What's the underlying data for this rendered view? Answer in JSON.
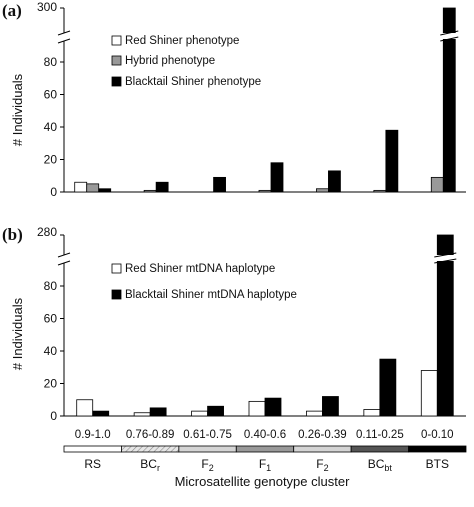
{
  "figure": {
    "xlabel": "Microsatellite genotype cluster",
    "ranges": [
      "0.9-1.0",
      "0.76-0.89",
      "0.61-0.75",
      "0.40-0.6",
      "0.26-0.39",
      "0.11-0.25",
      "0-0.10"
    ],
    "clusters": [
      {
        "base": "RS",
        "sub": ""
      },
      {
        "base": "BC",
        "sub": "r"
      },
      {
        "base": "F",
        "sub": "2"
      },
      {
        "base": "F",
        "sub": "1"
      },
      {
        "base": "F",
        "sub": "2"
      },
      {
        "base": "BC",
        "sub": "bt"
      },
      {
        "base": "BTS",
        "sub": ""
      }
    ]
  },
  "chart_data": [
    {
      "type": "bar",
      "panel_label": "(a)",
      "ylabel": "# Individuals",
      "yticks": [
        "0",
        "20",
        "40",
        "60",
        "80"
      ],
      "ytick_top": "300",
      "ylim": [
        0,
        100
      ],
      "axis_break": true,
      "categories": [
        "RS",
        "BCr",
        "F2",
        "F1",
        "F2",
        "BCbt",
        "BTS"
      ],
      "series": [
        {
          "name": "Red Shiner phenotype",
          "color": "#ffffff",
          "values": [
            6,
            0,
            0,
            0,
            0,
            0,
            0
          ]
        },
        {
          "name": "Hybrid phenotype",
          "color": "#999999",
          "values": [
            5,
            1,
            0,
            1,
            2,
            1,
            9
          ]
        },
        {
          "name": "Blacktail Shiner phenotype",
          "color": "#000000",
          "values": [
            2,
            6,
            9,
            18,
            13,
            38,
            300
          ]
        }
      ],
      "legend": "upper-left"
    },
    {
      "type": "bar",
      "panel_label": "(b)",
      "ylabel": "# Individuals",
      "yticks": [
        "0",
        "20",
        "40",
        "60",
        "80"
      ],
      "ytick_top": "280",
      "ylim": [
        0,
        100
      ],
      "axis_break": true,
      "categories": [
        "RS",
        "BCr",
        "F2",
        "F1",
        "F2",
        "BCbt",
        "BTS"
      ],
      "series": [
        {
          "name": "Red Shiner mtDNA haplotype",
          "color": "#ffffff",
          "values": [
            10,
            2,
            3,
            9,
            3,
            4,
            28
          ]
        },
        {
          "name": "Blacktail Shiner mtDNA haplotype",
          "color": "#000000",
          "values": [
            3,
            5,
            6,
            11,
            12,
            35,
            280
          ]
        }
      ],
      "legend": "upper-left"
    }
  ]
}
